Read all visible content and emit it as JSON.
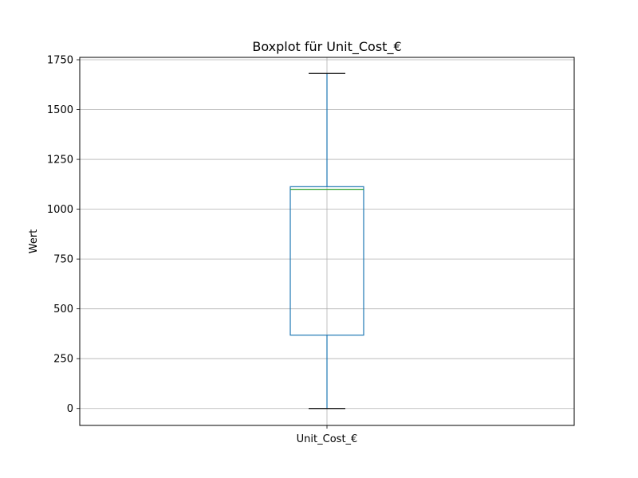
{
  "chart_data": {
    "type": "boxplot",
    "title": "Boxplot für Unit_Cost_€",
    "xlabel": "",
    "ylabel": "Wert",
    "categories": [
      "Unit_Cost_€"
    ],
    "boxes": [
      {
        "category": "Unit_Cost_€",
        "whisker_low": 0,
        "q1": 368,
        "median": 1100,
        "q3": 1113,
        "whisker_high": 1681
      }
    ],
    "yticks": [
      0,
      250,
      500,
      750,
      1000,
      1250,
      1500,
      1750
    ],
    "ylim": [
      -85,
      1762
    ],
    "grid": true,
    "colors": {
      "box": "#1f77b4",
      "median": "#2ca02c",
      "cap": "#000000",
      "grid": "#b0b0b0"
    }
  }
}
